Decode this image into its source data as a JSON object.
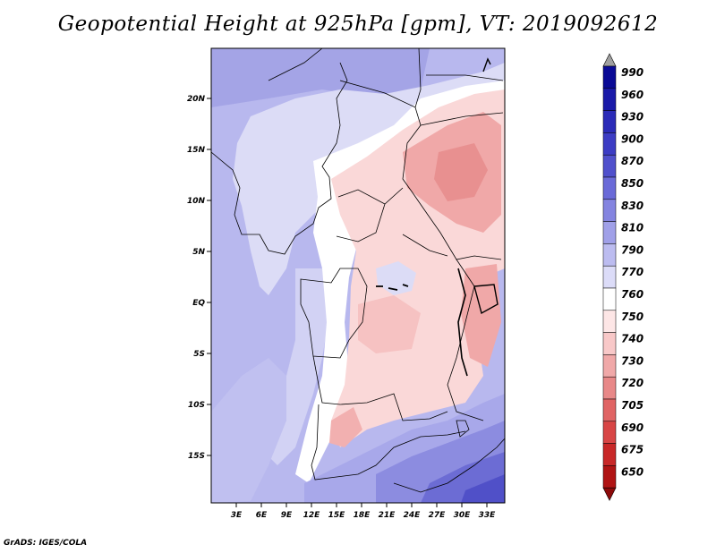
{
  "title": "Geopotential Height at 925hPa [gpm], VT: 2019092612",
  "credit": "GrADS: IGES/COLA",
  "map": {
    "lat_ticks": [
      "20N",
      "15N",
      "10N",
      "5N",
      "EQ",
      "5S",
      "10S",
      "15S"
    ],
    "lon_ticks": [
      "3E",
      "6E",
      "9E",
      "12E",
      "15E",
      "18E",
      "21E",
      "24E",
      "27E",
      "30E",
      "33E"
    ],
    "domain": {
      "lon_min": 0,
      "lon_max": 35,
      "lat_min": -20,
      "lat_max": 25
    }
  },
  "colorbar": {
    "levels": [
      "990",
      "960",
      "930",
      "900",
      "870",
      "850",
      "830",
      "810",
      "790",
      "770",
      "760",
      "750",
      "740",
      "730",
      "720",
      "705",
      "690",
      "675",
      "650"
    ],
    "colors": [
      "#0a0a96",
      "#1a1aa8",
      "#2b2bb8",
      "#3c3cc4",
      "#5050cc",
      "#6a6ad8",
      "#8484e0",
      "#a0a0e8",
      "#bcbcf0",
      "#dcdcf8",
      "#ffffff",
      "#fde6e6",
      "#f8c8c8",
      "#f0a8a8",
      "#e88888",
      "#e06464",
      "#d84646",
      "#c82828",
      "#b01414",
      "#8c0a0a"
    ]
  },
  "colors": {
    "blue": "#b4b4ec",
    "pale_blue": "#dcdcf6",
    "white": "#ffffff",
    "pink": "#fad8d8",
    "red": "#f2a8a8",
    "dark_blue": "#5a5ad0"
  }
}
